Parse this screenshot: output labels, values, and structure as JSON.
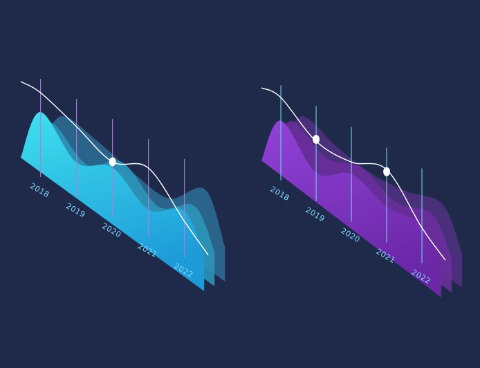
{
  "background": "#1f2a4a",
  "chart_data": [
    {
      "type": "area",
      "style": "isometric layered waves",
      "palette": {
        "front": [
          "#39d8ee",
          "#1f9fdc"
        ],
        "middle": "#2b95b8",
        "back": "#2d6f95",
        "line": "#ffffff",
        "gridline": "#a784d8",
        "labels": "#7fd8ff"
      },
      "categories": [
        "2018",
        "2019",
        "2020",
        "2021",
        "2022"
      ],
      "layers": [
        {
          "values": [
            0.62,
            0.55,
            0.38,
            0.3,
            0.72
          ]
        },
        {
          "values": [
            0.6,
            0.28,
            0.6,
            0.25,
            0.55
          ]
        },
        {
          "values": [
            0.82,
            0.38,
            0.6,
            0.28,
            0.55
          ]
        }
      ],
      "line": {
        "values": [
          0.9,
          0.7,
          0.48,
          0.68,
          0.2
        ]
      },
      "markers": [
        {
          "category": "2020",
          "value": 0.48
        }
      ]
    },
    {
      "type": "area",
      "style": "isometric layered waves",
      "palette": {
        "front": [
          "#8d3fd6",
          "#6a2aa8"
        ],
        "middle": "#6a2f9c",
        "back": "#523082",
        "line": "#ffffff",
        "gridline": "#6ed8ee",
        "labels": "#7fd8ff"
      },
      "categories": [
        "2018",
        "2019",
        "2020",
        "2021",
        "2022"
      ],
      "layers": [
        {
          "values": [
            0.7,
            0.55,
            0.45,
            0.5,
            0.62
          ]
        },
        {
          "values": [
            0.7,
            0.45,
            0.62,
            0.4,
            0.55
          ]
        },
        {
          "values": [
            0.78,
            0.3,
            0.6,
            0.42,
            0.45
          ]
        }
      ],
      "line": {
        "values": [
          0.9,
          0.55,
          0.55,
          0.75,
          0.18
        ]
      },
      "markers": [
        {
          "category": "2019",
          "value": 0.58
        },
        {
          "category": "2021",
          "value": 0.72
        }
      ]
    }
  ]
}
